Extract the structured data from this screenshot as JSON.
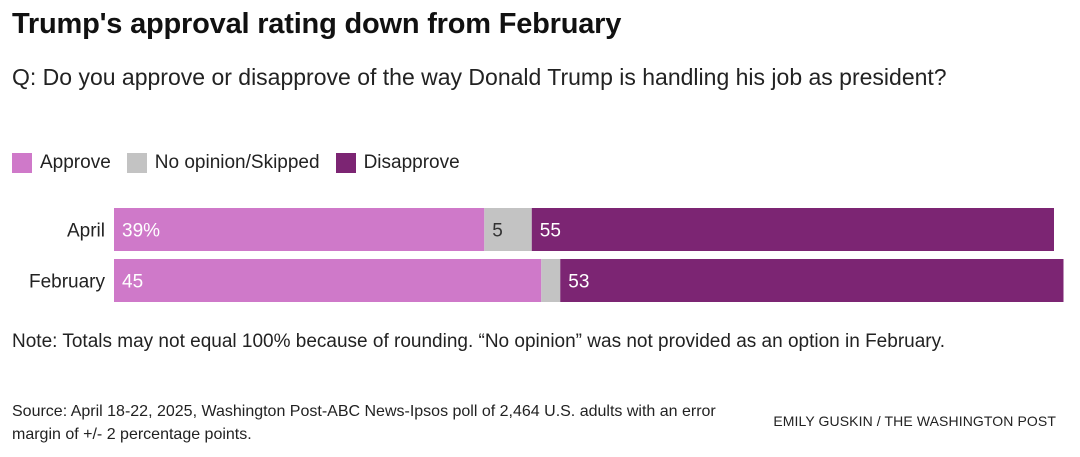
{
  "title": "Trump's approval rating down from February",
  "question": "Q: Do you approve or disapprove of the way Donald Trump is handling his job as president?",
  "legend": [
    {
      "label": "Approve",
      "color": "#cf79c9"
    },
    {
      "label": "No opinion/Skipped",
      "color": "#c3c3c3"
    },
    {
      "label": "Disapprove",
      "color": "#7c2573"
    }
  ],
  "chart_data": {
    "type": "bar",
    "stacked": true,
    "orientation": "horizontal",
    "categories": [
      "April",
      "February"
    ],
    "series": [
      {
        "name": "Approve",
        "color": "#cf79c9",
        "values": [
          39,
          45
        ],
        "labels": [
          "39%",
          "45"
        ]
      },
      {
        "name": "No opinion/Skipped",
        "color": "#c3c3c3",
        "values": [
          5,
          2
        ],
        "labels": [
          "5",
          ""
        ]
      },
      {
        "name": "Disapprove",
        "color": "#7c2573",
        "values": [
          55,
          53
        ],
        "labels": [
          "55",
          "53"
        ]
      }
    ],
    "xlim": [
      0,
      99
    ],
    "grid": false,
    "legend_position": "top-left"
  },
  "note": "Note: Totals may not equal 100% because of rounding. “No opinion” was not provided as an option in February.",
  "source": "Source: April 18-22, 2025, Washington Post-ABC News-Ipsos poll of 2,464 U.S. adults with an error margin of +/- 2 percentage points.",
  "credit": "EMILY GUSKIN / THE WASHINGTON POST"
}
